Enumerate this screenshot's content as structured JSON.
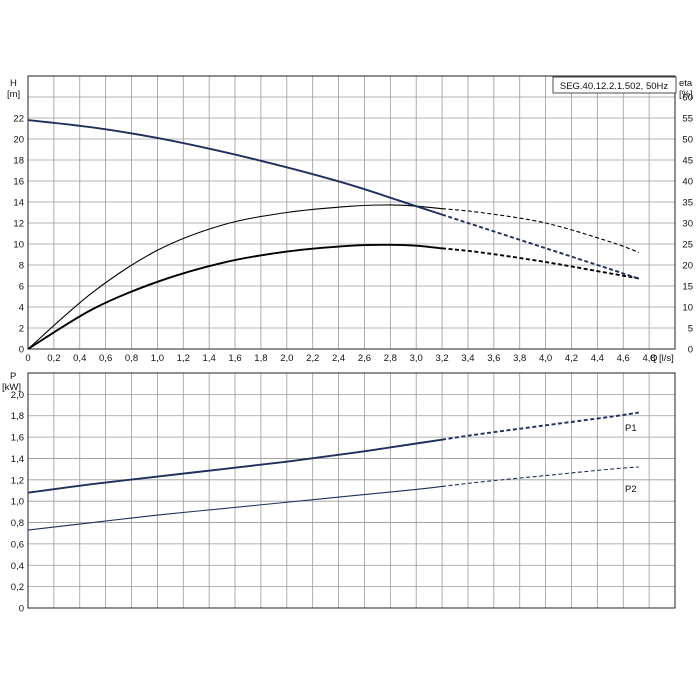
{
  "chart_data": [
    {
      "type": "line",
      "title": "SEG.40.12.2.1.502, 50Hz",
      "xlabel": "Q [l/s]",
      "ylabel": "H [m]",
      "y2label": "eta [%]",
      "x_axis": {
        "label_name": "Q",
        "label_unit": "[l/s]",
        "range": [
          0,
          5.0
        ],
        "ticks": [
          "0",
          "0,2",
          "0,4",
          "0,6",
          "0,8",
          "1,0",
          "1,2",
          "1,4",
          "1,6",
          "1,8",
          "2,0",
          "2,2",
          "2,4",
          "2,6",
          "2,8",
          "3,0",
          "3,2",
          "3,4",
          "3,6",
          "3,8",
          "4,0",
          "4,2",
          "4,4",
          "4,6",
          "4,8"
        ]
      },
      "y_axis": {
        "label_name": "H",
        "label_unit": "[m]",
        "range": [
          0,
          26
        ],
        "ticks": [
          "0",
          "2",
          "4",
          "6",
          "8",
          "10",
          "12",
          "14",
          "16",
          "18",
          "20",
          "22"
        ]
      },
      "y2_axis": {
        "label_name": "eta",
        "label_unit": "[%]",
        "range": [
          0,
          65
        ],
        "ticks": [
          "0",
          "5",
          "10",
          "15",
          "20",
          "25",
          "30",
          "35",
          "40",
          "45",
          "50",
          "55",
          "60"
        ]
      },
      "grid": true,
      "series": [
        {
          "id": "H",
          "axis": "left",
          "color": "#1f2f5e",
          "solid_until_x": 3.2,
          "x": [
            0,
            0.5,
            1.0,
            1.5,
            2.0,
            2.5,
            3.0,
            3.5,
            4.0,
            4.5,
            4.72
          ],
          "y": [
            21.8,
            21.1,
            20.1,
            18.8,
            17.3,
            15.6,
            13.6,
            11.6,
            9.6,
            7.6,
            6.7
          ]
        },
        {
          "id": "eta-upper",
          "axis": "right",
          "color": "#000000",
          "solid_until_x": 3.2,
          "x": [
            0,
            0.5,
            1.0,
            1.5,
            2.0,
            2.5,
            2.8,
            3.0,
            3.5,
            4.0,
            4.5,
            4.72
          ],
          "y": [
            0,
            13.5,
            23.5,
            29.5,
            32.5,
            34.0,
            34.3,
            34.0,
            32.5,
            30.0,
            25.5,
            23.0
          ]
        },
        {
          "id": "eta-lower",
          "axis": "right",
          "color": "#000000",
          "solid_until_x": 3.2,
          "x": [
            0,
            0.5,
            1.0,
            1.5,
            2.0,
            2.5,
            2.8,
            3.0,
            3.5,
            4.0,
            4.5,
            4.72
          ],
          "y": [
            0,
            9.5,
            16.0,
            20.5,
            23.2,
            24.6,
            24.8,
            24.6,
            23.0,
            20.7,
            18.0,
            16.8
          ]
        }
      ]
    },
    {
      "type": "line",
      "xlabel": "",
      "ylabel": "P [kW]",
      "x_axis": {
        "range": [
          0,
          5.0
        ]
      },
      "y_axis": {
        "label_name": "P",
        "label_unit": "[kW]",
        "range": [
          0,
          2.2
        ],
        "ticks": [
          "0",
          "0,2",
          "0,4",
          "0,6",
          "0,8",
          "1,0",
          "1,2",
          "1,4",
          "1,6",
          "1,8",
          "2,0"
        ]
      },
      "grid": true,
      "series": [
        {
          "name": "P1",
          "color": "#1f2f5e",
          "solid_until_x": 3.2,
          "x": [
            0,
            0.5,
            1.0,
            1.5,
            2.0,
            2.5,
            3.0,
            3.5,
            4.0,
            4.5,
            4.72
          ],
          "y": [
            1.08,
            1.16,
            1.23,
            1.3,
            1.37,
            1.45,
            1.54,
            1.63,
            1.71,
            1.79,
            1.83
          ]
        },
        {
          "name": "P2",
          "color": "#1f2f5e",
          "solid_until_x": 3.2,
          "x": [
            0,
            0.5,
            1.0,
            1.5,
            2.0,
            2.5,
            3.0,
            3.5,
            4.0,
            4.5,
            4.72
          ],
          "y": [
            0.73,
            0.8,
            0.87,
            0.93,
            0.99,
            1.05,
            1.11,
            1.18,
            1.24,
            1.3,
            1.32
          ]
        }
      ]
    }
  ]
}
